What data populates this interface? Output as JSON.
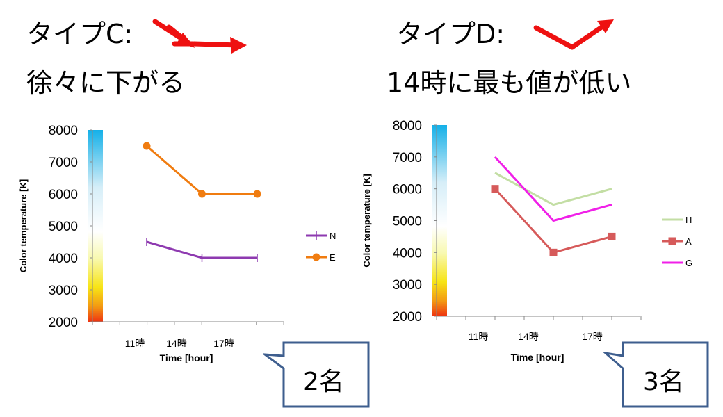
{
  "left": {
    "type_label": "タイプC:",
    "description": "徐々に下がる",
    "callout_label": "2名"
  },
  "right": {
    "type_label": "タイプD:",
    "description": "14時に最も値が低い",
    "callout_label": "3名"
  },
  "colors": {
    "arrow": "#ee1111",
    "N": "#8e3ab0",
    "E": "#f07c10",
    "H": "#c3dea4",
    "A": "#d65a5a",
    "G": "#f020e8",
    "callout_border": "#3e5e8e"
  },
  "chart_data": [
    {
      "type": "line",
      "xlabel": "Time [hour]",
      "ylabel": "Color temperature [K]",
      "categories": [
        "11時",
        "14時",
        "17時"
      ],
      "ylim": [
        2000,
        8000
      ],
      "yticks": [
        "2000",
        "3000",
        "4000",
        "5000",
        "6000",
        "7000",
        "8000"
      ],
      "legend_position": "right",
      "series": [
        {
          "name": "N",
          "marker": "plus",
          "x": [
            1,
            2,
            3
          ],
          "values": [
            4500,
            4000,
            4000
          ]
        },
        {
          "name": "E",
          "marker": "circle",
          "x": [
            1,
            2,
            3
          ],
          "values": [
            7500,
            6000,
            6000
          ]
        }
      ]
    },
    {
      "type": "line",
      "xlabel": "Time [hour]",
      "ylabel": "Color temperature [K]",
      "categories": [
        "11時",
        "14時",
        "17時"
      ],
      "ylim": [
        2000,
        8000
      ],
      "yticks": [
        "2000",
        "3000",
        "4000",
        "5000",
        "6000",
        "7000",
        "8000"
      ],
      "legend_position": "right",
      "series": [
        {
          "name": "H",
          "marker": "none",
          "x": [
            1,
            2,
            3
          ],
          "values": [
            6500,
            5500,
            6000
          ]
        },
        {
          "name": "A",
          "marker": "square",
          "x": [
            1,
            2,
            3
          ],
          "values": [
            6000,
            4000,
            4500
          ]
        },
        {
          "name": "G",
          "marker": "none",
          "x": [
            1,
            2,
            3
          ],
          "values": [
            7000,
            5000,
            5500
          ]
        }
      ]
    }
  ]
}
